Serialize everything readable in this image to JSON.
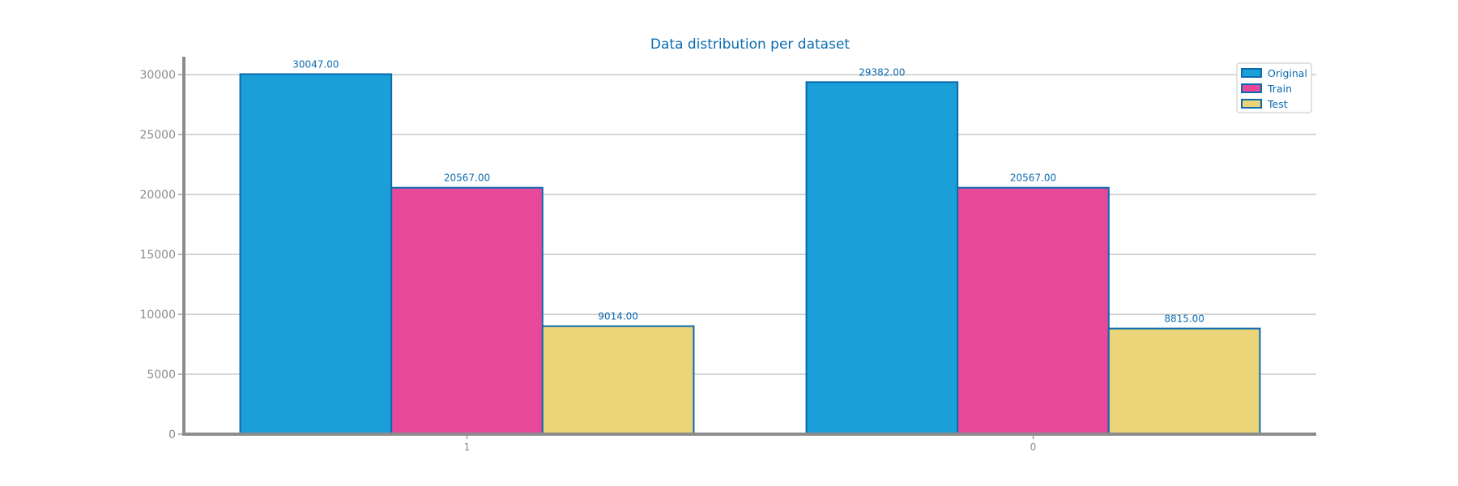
{
  "chart_data": {
    "type": "bar",
    "title": "Data distribution per dataset",
    "xlabel": "",
    "ylabel": "",
    "categories": [
      "1",
      "0"
    ],
    "series": [
      {
        "name": "Original",
        "values": [
          30047,
          29382
        ],
        "labels": [
          "30047.00",
          "29382.00"
        ],
        "color": "#1a9fd8"
      },
      {
        "name": "Train",
        "values": [
          20567,
          20567
        ],
        "labels": [
          "20567.00",
          "20567.00"
        ],
        "color": "#e8489a"
      },
      {
        "name": "Test",
        "values": [
          9014,
          8815
        ],
        "labels": [
          "9014.00",
          "8815.00"
        ],
        "color": "#ebd377"
      }
    ],
    "ylim": [
      0,
      31500
    ],
    "yticks": [
      0,
      5000,
      10000,
      15000,
      20000,
      25000,
      30000
    ],
    "grid": "horizontal",
    "legend_position": "top-right",
    "colors": {
      "text": "#0b6bb0",
      "axis": "#8c8c8c",
      "tick_text": "#8c8c8c",
      "grid": "#c8c8c8",
      "bar_edge": "#0b6bb0"
    }
  }
}
